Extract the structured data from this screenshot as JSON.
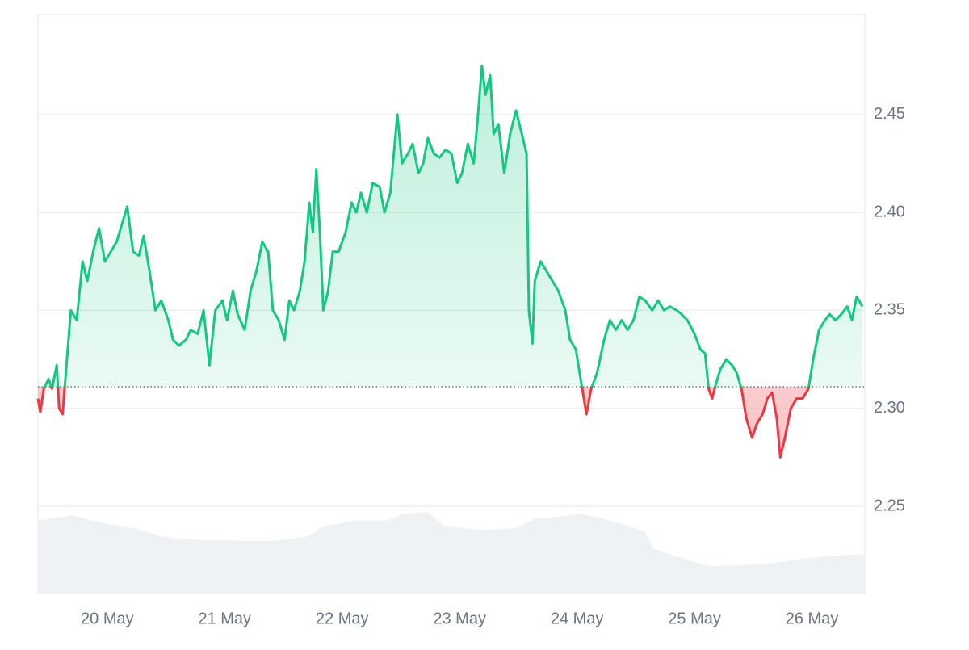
{
  "chart_data": {
    "type": "line",
    "x": [
      19.41,
      19.43,
      19.46,
      19.5,
      19.53,
      19.57,
      19.59,
      19.62,
      19.65,
      19.69,
      19.74,
      19.79,
      19.83,
      19.88,
      19.93,
      19.98,
      20.03,
      20.08,
      20.13,
      20.17,
      20.22,
      20.27,
      20.31,
      20.36,
      20.41,
      20.46,
      20.52,
      20.56,
      20.61,
      20.67,
      20.71,
      20.77,
      20.82,
      20.87,
      20.92,
      20.98,
      21.02,
      21.07,
      21.11,
      21.17,
      21.22,
      21.27,
      21.32,
      21.37,
      21.41,
      21.46,
      21.51,
      21.55,
      21.59,
      21.64,
      21.68,
      21.72,
      21.75,
      21.78,
      21.81,
      21.84,
      21.88,
      21.92,
      21.97,
      22.03,
      22.08,
      22.12,
      22.16,
      22.21,
      22.26,
      22.32,
      22.36,
      22.41,
      22.44,
      22.47,
      22.51,
      22.56,
      22.6,
      22.65,
      22.69,
      22.73,
      22.78,
      22.83,
      22.88,
      22.93,
      22.98,
      23.02,
      23.07,
      23.12,
      23.15,
      23.19,
      23.22,
      23.26,
      23.29,
      23.33,
      23.38,
      23.43,
      23.48,
      23.53,
      23.57,
      23.59,
      23.62,
      23.64,
      23.69,
      23.74,
      23.79,
      23.84,
      23.9,
      23.94,
      23.99,
      24.03,
      24.08,
      24.12,
      24.17,
      24.23,
      24.28,
      24.33,
      24.38,
      24.43,
      24.48,
      24.53,
      24.58,
      24.64,
      24.69,
      24.74,
      24.79,
      24.85,
      24.89,
      24.94,
      25.0,
      25.05,
      25.09,
      25.12,
      25.15,
      25.18,
      25.22,
      25.27,
      25.32,
      25.36,
      25.4,
      25.44,
      25.49,
      25.53,
      25.58,
      25.62,
      25.66,
      25.7,
      25.73,
      25.77,
      25.82,
      25.87,
      25.92,
      25.97,
      26.01,
      26.06,
      26.11,
      26.15,
      26.2,
      26.25,
      26.3,
      26.34,
      26.38,
      26.43
    ],
    "values": [
      2.305,
      2.298,
      2.31,
      2.315,
      2.31,
      2.322,
      2.3,
      2.297,
      2.32,
      2.35,
      2.345,
      2.375,
      2.365,
      2.38,
      2.392,
      2.375,
      2.38,
      2.385,
      2.395,
      2.403,
      2.38,
      2.378,
      2.388,
      2.37,
      2.35,
      2.355,
      2.345,
      2.335,
      2.332,
      2.335,
      2.34,
      2.338,
      2.35,
      2.322,
      2.35,
      2.355,
      2.345,
      2.36,
      2.348,
      2.34,
      2.36,
      2.37,
      2.385,
      2.38,
      2.35,
      2.345,
      2.335,
      2.355,
      2.35,
      2.36,
      2.375,
      2.405,
      2.39,
      2.422,
      2.39,
      2.35,
      2.36,
      2.38,
      2.38,
      2.39,
      2.405,
      2.4,
      2.41,
      2.4,
      2.415,
      2.413,
      2.4,
      2.41,
      2.43,
      2.45,
      2.425,
      2.43,
      2.435,
      2.42,
      2.425,
      2.438,
      2.43,
      2.428,
      2.432,
      2.43,
      2.415,
      2.42,
      2.435,
      2.425,
      2.445,
      2.475,
      2.46,
      2.47,
      2.44,
      2.445,
      2.42,
      2.44,
      2.452,
      2.44,
      2.43,
      2.35,
      2.333,
      2.365,
      2.375,
      2.37,
      2.365,
      2.36,
      2.35,
      2.335,
      2.33,
      2.315,
      2.297,
      2.31,
      2.318,
      2.335,
      2.345,
      2.34,
      2.345,
      2.34,
      2.345,
      2.357,
      2.355,
      2.35,
      2.355,
      2.35,
      2.352,
      2.35,
      2.348,
      2.345,
      2.338,
      2.33,
      2.328,
      2.31,
      2.305,
      2.312,
      2.32,
      2.325,
      2.322,
      2.318,
      2.31,
      2.295,
      2.285,
      2.292,
      2.297,
      2.305,
      2.308,
      2.295,
      2.275,
      2.285,
      2.3,
      2.305,
      2.305,
      2.31,
      2.325,
      2.34,
      2.345,
      2.348,
      2.345,
      2.348,
      2.352,
      2.345,
      2.357,
      2.352
    ],
    "color": "#16c784",
    "color_below": "#ea3943",
    "baseline": 2.311,
    "xlim": [
      19.41,
      26.45
    ],
    "xticks": [
      {
        "value": 20,
        "label": "20 May"
      },
      {
        "value": 21,
        "label": "21 May"
      },
      {
        "value": 22,
        "label": "22 May"
      },
      {
        "value": 23,
        "label": "23 May"
      },
      {
        "value": 24,
        "label": "24 May"
      },
      {
        "value": 25,
        "label": "25 May"
      },
      {
        "value": 26,
        "label": "26 May"
      }
    ],
    "ylim": [
      2.2055,
      2.501
    ],
    "yticks": [
      2.25,
      {
        "value": 2.3,
        "label": "2.30"
      },
      2.35,
      {
        "value": 2.4,
        "label": "2.40"
      },
      2.45
    ],
    "grid": true,
    "y2lim": [
      0,
      1
    ],
    "volume": {
      "axis": "y2",
      "color": "#eff2f5",
      "x": [
        19.41,
        19.7,
        19.98,
        20.25,
        20.46,
        20.74,
        21.15,
        21.42,
        21.7,
        21.84,
        22.11,
        22.38,
        22.52,
        22.73,
        22.87,
        23.21,
        23.48,
        23.62,
        24.03,
        24.17,
        24.45,
        24.58,
        24.65,
        24.86,
        25.13,
        25.41,
        25.68,
        25.96,
        26.23,
        26.45
      ],
      "values": [
        0.126,
        0.135,
        0.121,
        0.112,
        0.098,
        0.093,
        0.091,
        0.091,
        0.098,
        0.116,
        0.126,
        0.126,
        0.137,
        0.141,
        0.116,
        0.11,
        0.113,
        0.128,
        0.137,
        0.132,
        0.116,
        0.107,
        0.077,
        0.063,
        0.047,
        0.049,
        0.053,
        0.061,
        0.066,
        0.068
      ]
    }
  }
}
